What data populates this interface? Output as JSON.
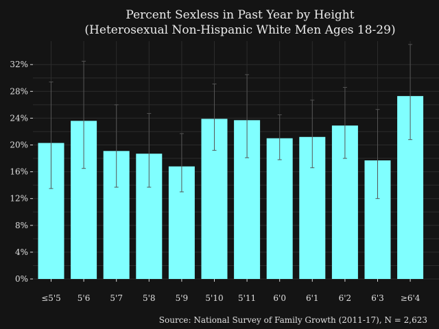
{
  "chart_data": {
    "type": "bar",
    "title": "Percent Sexless in Past Year by Height",
    "subtitle": "(Heterosexual Non-Hispanic White Men Ages 18-29)",
    "source": "Source: National Survey of Family Growth (2011-17), N = 2,623",
    "categories": [
      "≤5'5",
      "5'6",
      "5'7",
      "5'8",
      "5'9",
      "5'10",
      "5'11",
      "6'0",
      "6'1",
      "6'2",
      "6'3",
      "≥6'4"
    ],
    "values": [
      20.3,
      23.6,
      19.1,
      18.7,
      16.8,
      23.9,
      23.7,
      21.0,
      21.2,
      22.9,
      17.7,
      27.3
    ],
    "error_low": [
      13.5,
      16.5,
      13.7,
      13.7,
      13.0,
      19.2,
      18.1,
      17.8,
      16.6,
      18.0,
      12.0,
      20.8
    ],
    "error_high": [
      29.4,
      32.5,
      26.0,
      24.7,
      21.7,
      29.1,
      30.5,
      24.5,
      26.7,
      28.6,
      25.3,
      35.0
    ],
    "ylim": [
      0,
      35.5
    ],
    "yticks": [
      0,
      4,
      8,
      12,
      16,
      20,
      24,
      28,
      32
    ],
    "ytick_labels": [
      "0%",
      "4%",
      "8%",
      "12%",
      "16%",
      "20%",
      "24%",
      "28%",
      "32%"
    ],
    "grid": true,
    "colors": {
      "bar": "#80ffff",
      "background": "#141414",
      "error_bar": "#555555"
    }
  }
}
